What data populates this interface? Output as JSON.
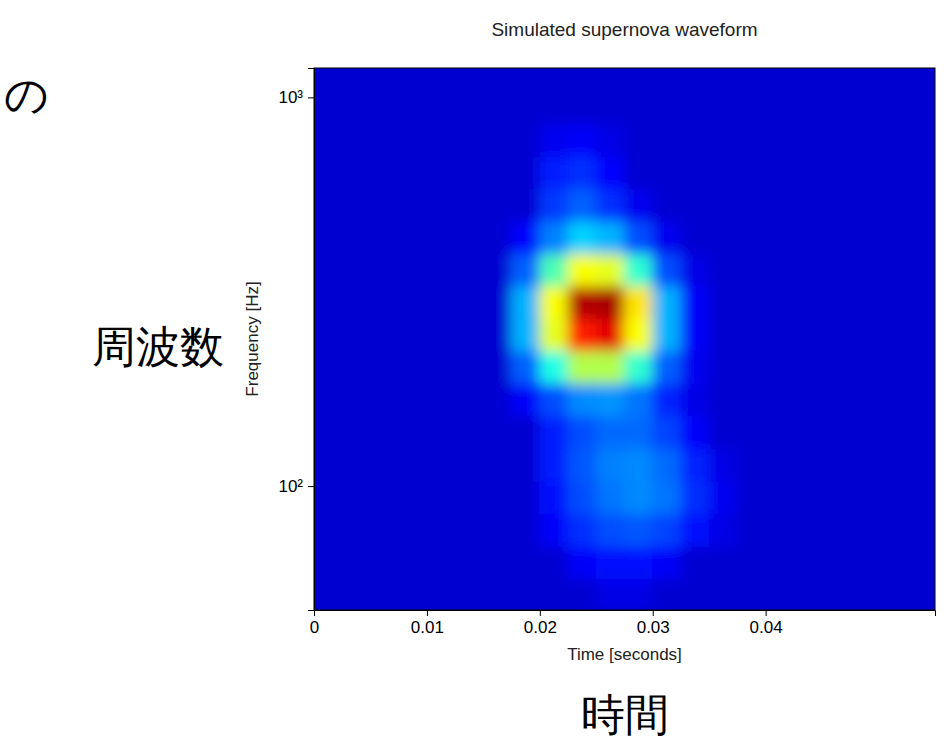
{
  "chart_data": {
    "type": "heatmap",
    "title": "Simulated supernova waveform",
    "x_label": "Time [seconds]",
    "y_label": "Frequency [Hz]",
    "annotations": [
      "周波数",
      "時間",
      "の"
    ],
    "log": "y",
    "xlim": [
      0,
      0.055
    ],
    "ylim": [
      48,
      1190
    ],
    "xticks": [
      0,
      0.01,
      0.02,
      0.03,
      0.04
    ],
    "yticks": [
      {
        "value": 100,
        "label": "10²"
      },
      {
        "value": 1000,
        "label": "10³"
      }
    ],
    "x_edges": [
      0,
      0.0025,
      0.005,
      0.0075,
      0.01,
      0.0125,
      0.015,
      0.0175,
      0.02,
      0.0225,
      0.025,
      0.0275,
      0.03,
      0.0325,
      0.035,
      0.0375,
      0.04,
      0.0425,
      0.045,
      0.0475,
      0.05,
      0.0525,
      0.055
    ],
    "y_edges": [
      48,
      58,
      70,
      85,
      103,
      125,
      152,
      184,
      223,
      270,
      327,
      396,
      480,
      582,
      705,
      855,
      1036,
      1190
    ],
    "cells": [
      [
        0.08,
        0.08,
        0.08,
        0.08,
        0.08,
        0.08,
        0.08,
        0.08,
        0.08,
        0.08,
        0.1,
        0.1,
        0.08,
        0.08,
        0.08,
        0.08,
        0.08,
        0.08,
        0.08,
        0.08,
        0.08,
        0.08
      ],
      [
        0.08,
        0.08,
        0.08,
        0.08,
        0.08,
        0.08,
        0.08,
        0.08,
        0.08,
        0.12,
        0.14,
        0.14,
        0.12,
        0.08,
        0.08,
        0.08,
        0.08,
        0.08,
        0.08,
        0.08,
        0.08,
        0.08
      ],
      [
        0.08,
        0.08,
        0.08,
        0.08,
        0.08,
        0.08,
        0.08,
        0.08,
        0.12,
        0.17,
        0.2,
        0.21,
        0.19,
        0.14,
        0.1,
        0.08,
        0.08,
        0.08,
        0.08,
        0.08,
        0.08,
        0.08
      ],
      [
        0.08,
        0.08,
        0.08,
        0.08,
        0.08,
        0.08,
        0.08,
        0.08,
        0.14,
        0.2,
        0.24,
        0.26,
        0.24,
        0.17,
        0.11,
        0.08,
        0.08,
        0.08,
        0.08,
        0.08,
        0.08,
        0.08
      ],
      [
        0.08,
        0.08,
        0.08,
        0.08,
        0.08,
        0.08,
        0.08,
        0.08,
        0.15,
        0.21,
        0.25,
        0.26,
        0.23,
        0.16,
        0.1,
        0.08,
        0.08,
        0.08,
        0.08,
        0.08,
        0.08,
        0.08
      ],
      [
        0.08,
        0.08,
        0.08,
        0.08,
        0.08,
        0.08,
        0.08,
        0.08,
        0.15,
        0.2,
        0.23,
        0.23,
        0.19,
        0.12,
        0.08,
        0.08,
        0.08,
        0.08,
        0.08,
        0.08,
        0.08,
        0.08
      ],
      [
        0.08,
        0.08,
        0.08,
        0.08,
        0.08,
        0.08,
        0.08,
        0.12,
        0.2,
        0.26,
        0.27,
        0.24,
        0.16,
        0.1,
        0.08,
        0.08,
        0.08,
        0.08,
        0.08,
        0.08,
        0.08,
        0.08
      ],
      [
        0.08,
        0.08,
        0.08,
        0.08,
        0.08,
        0.08,
        0.08,
        0.22,
        0.4,
        0.55,
        0.55,
        0.42,
        0.22,
        0.11,
        0.08,
        0.08,
        0.08,
        0.08,
        0.08,
        0.08,
        0.08,
        0.08
      ],
      [
        0.08,
        0.08,
        0.08,
        0.08,
        0.08,
        0.08,
        0.08,
        0.3,
        0.6,
        0.85,
        0.9,
        0.62,
        0.3,
        0.12,
        0.08,
        0.08,
        0.08,
        0.08,
        0.08,
        0.08,
        0.08,
        0.08
      ],
      [
        0.08,
        0.08,
        0.08,
        0.08,
        0.08,
        0.08,
        0.08,
        0.3,
        0.62,
        0.95,
        0.96,
        0.65,
        0.3,
        0.12,
        0.08,
        0.08,
        0.08,
        0.08,
        0.08,
        0.08,
        0.08,
        0.08
      ],
      [
        0.08,
        0.08,
        0.08,
        0.08,
        0.08,
        0.08,
        0.08,
        0.22,
        0.45,
        0.62,
        0.6,
        0.42,
        0.2,
        0.1,
        0.08,
        0.08,
        0.08,
        0.08,
        0.08,
        0.08,
        0.08,
        0.08
      ],
      [
        0.08,
        0.08,
        0.08,
        0.08,
        0.08,
        0.08,
        0.08,
        0.13,
        0.25,
        0.33,
        0.3,
        0.2,
        0.11,
        0.08,
        0.08,
        0.08,
        0.08,
        0.08,
        0.08,
        0.08,
        0.08,
        0.08
      ],
      [
        0.08,
        0.08,
        0.08,
        0.08,
        0.08,
        0.08,
        0.08,
        0.08,
        0.18,
        0.22,
        0.17,
        0.11,
        0.08,
        0.08,
        0.08,
        0.08,
        0.08,
        0.08,
        0.08,
        0.08,
        0.08,
        0.08
      ],
      [
        0.08,
        0.08,
        0.08,
        0.08,
        0.08,
        0.08,
        0.08,
        0.08,
        0.15,
        0.17,
        0.13,
        0.08,
        0.08,
        0.08,
        0.08,
        0.08,
        0.08,
        0.08,
        0.08,
        0.08,
        0.08,
        0.08
      ],
      [
        0.08,
        0.08,
        0.08,
        0.08,
        0.08,
        0.08,
        0.08,
        0.08,
        0.11,
        0.12,
        0.1,
        0.08,
        0.08,
        0.08,
        0.08,
        0.08,
        0.08,
        0.08,
        0.08,
        0.08,
        0.08,
        0.08
      ],
      [
        0.08,
        0.08,
        0.08,
        0.08,
        0.08,
        0.08,
        0.08,
        0.08,
        0.08,
        0.08,
        0.08,
        0.08,
        0.08,
        0.08,
        0.08,
        0.08,
        0.08,
        0.08,
        0.08,
        0.08,
        0.08,
        0.08
      ],
      [
        0.08,
        0.08,
        0.08,
        0.08,
        0.08,
        0.08,
        0.08,
        0.08,
        0.08,
        0.08,
        0.08,
        0.08,
        0.08,
        0.08,
        0.08,
        0.08,
        0.08,
        0.08,
        0.08,
        0.08,
        0.08,
        0.08
      ]
    ]
  }
}
